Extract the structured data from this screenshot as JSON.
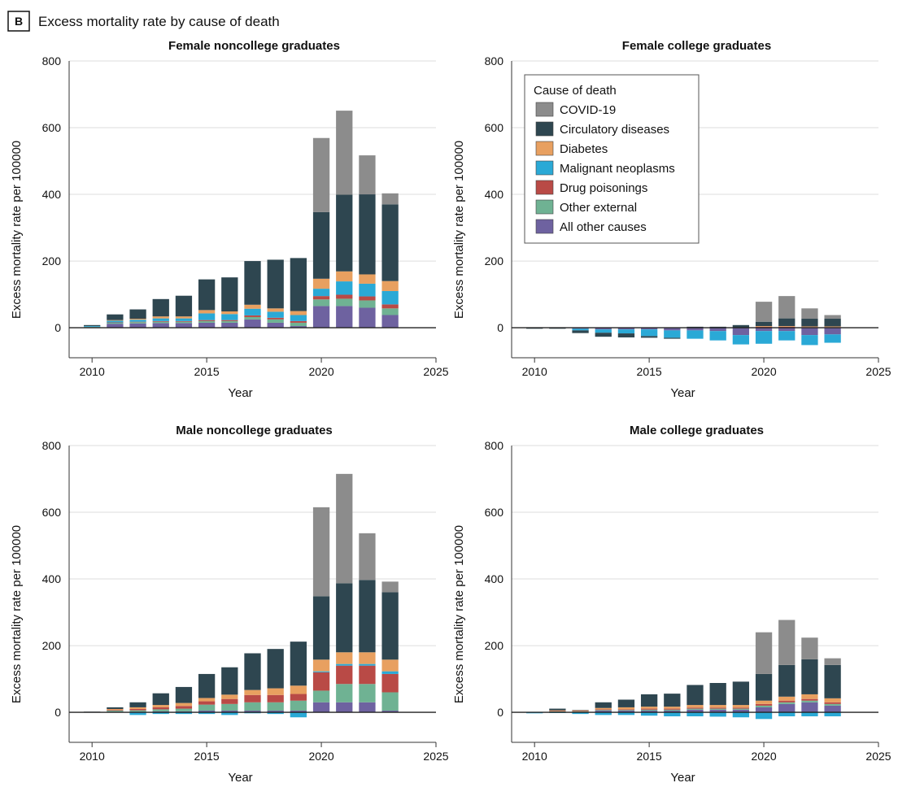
{
  "figure": {
    "label": "B",
    "title": "Excess mortality rate by cause of death"
  },
  "legend": {
    "title": "Cause of death",
    "items": [
      {
        "name": "COVID-19",
        "color": "#8c8c8c"
      },
      {
        "name": "Circulatory diseases",
        "color": "#2e4650"
      },
      {
        "name": "Diabetes",
        "color": "#e8a060"
      },
      {
        "name": "Malignant neoplasms",
        "color": "#2aa9d6"
      },
      {
        "name": "Drug poisonings",
        "color": "#b94a46"
      },
      {
        "name": "Other external",
        "color": "#6fb293"
      },
      {
        "name": "All other causes",
        "color": "#6e62a0"
      }
    ]
  },
  "chart_data": [
    {
      "type": "bar",
      "stacked": true,
      "title": "Female noncollege graduates",
      "xlabel": "Year",
      "ylabel": "Excess mortality rate per 100000",
      "xlim": [
        2009,
        2025
      ],
      "ylim": [
        -90,
        800
      ],
      "xticks": [
        2010,
        2015,
        2020,
        2025
      ],
      "yticks": [
        0,
        200,
        400,
        600,
        800
      ],
      "grid": true,
      "x": [
        2010,
        2011,
        2012,
        2013,
        2014,
        2015,
        2016,
        2017,
        2018,
        2019,
        2020,
        2021,
        2022,
        2023
      ],
      "series": [
        {
          "name": "All other causes",
          "values": [
            2,
            12,
            13,
            14,
            14,
            15,
            15,
            25,
            15,
            5,
            65,
            65,
            60,
            38
          ]
        },
        {
          "name": "Other external",
          "values": [
            1,
            3,
            4,
            4,
            4,
            5,
            5,
            7,
            10,
            10,
            20,
            22,
            22,
            20
          ]
        },
        {
          "name": "Drug poisonings",
          "values": [
            0,
            1,
            1,
            2,
            2,
            3,
            3,
            5,
            5,
            5,
            10,
            12,
            12,
            12
          ]
        },
        {
          "name": "Malignant neoplasms",
          "values": [
            2,
            5,
            6,
            8,
            8,
            20,
            18,
            20,
            18,
            18,
            22,
            40,
            38,
            40
          ]
        },
        {
          "name": "Diabetes",
          "values": [
            0,
            2,
            3,
            6,
            6,
            10,
            8,
            12,
            10,
            12,
            30,
            30,
            28,
            30
          ]
        },
        {
          "name": "Circulatory diseases",
          "values": [
            3,
            17,
            28,
            52,
            62,
            92,
            102,
            131,
            146,
            159,
            200,
            230,
            240,
            230
          ]
        },
        {
          "name": "COVID-19",
          "values": [
            0,
            0,
            0,
            0,
            0,
            0,
            0,
            0,
            0,
            0,
            222,
            252,
            117,
            33
          ]
        }
      ]
    },
    {
      "type": "bar",
      "stacked": true,
      "title": "Female college graduates",
      "xlabel": "Year",
      "ylabel": "Excess mortality rate per 100000",
      "xlim": [
        2009,
        2025
      ],
      "ylim": [
        -90,
        800
      ],
      "xticks": [
        2010,
        2015,
        2020,
        2025
      ],
      "yticks": [
        0,
        200,
        400,
        600,
        800
      ],
      "grid": true,
      "x": [
        2010,
        2011,
        2012,
        2013,
        2014,
        2015,
        2016,
        2017,
        2018,
        2019,
        2020,
        2021,
        2022,
        2023
      ],
      "series": [
        {
          "name": "All other causes",
          "values": [
            0,
            0,
            -3,
            -5,
            -5,
            -5,
            -8,
            -8,
            -10,
            -22,
            -10,
            -10,
            -22,
            -20
          ]
        },
        {
          "name": "Other external",
          "values": [
            0,
            0,
            0,
            0,
            0,
            0,
            0,
            0,
            0,
            0,
            0,
            0,
            0,
            0
          ]
        },
        {
          "name": "Drug poisonings",
          "values": [
            0,
            0,
            0,
            0,
            0,
            0,
            0,
            0,
            0,
            0,
            3,
            3,
            2,
            2
          ]
        },
        {
          "name": "Malignant neoplasms",
          "values": [
            -1,
            -1,
            -5,
            -10,
            -12,
            -20,
            -22,
            -25,
            -28,
            -28,
            -38,
            -28,
            -30,
            -25
          ]
        },
        {
          "name": "Diabetes",
          "values": [
            0,
            0,
            0,
            0,
            0,
            0,
            0,
            0,
            0,
            0,
            2,
            2,
            2,
            2
          ]
        },
        {
          "name": "Circulatory diseases",
          "values": [
            -2,
            -2,
            -8,
            -12,
            -12,
            -5,
            -3,
            3,
            3,
            8,
            13,
            23,
            23,
            23
          ]
        },
        {
          "name": "COVID-19",
          "values": [
            0,
            0,
            0,
            0,
            0,
            0,
            0,
            0,
            0,
            0,
            60,
            67,
            31,
            11
          ]
        }
      ]
    },
    {
      "type": "bar",
      "stacked": true,
      "title": "Male noncollege graduates",
      "xlabel": "Year",
      "ylabel": "Excess mortality rate per 100000",
      "xlim": [
        2009,
        2025
      ],
      "ylim": [
        -90,
        800
      ],
      "xticks": [
        2010,
        2015,
        2020,
        2025
      ],
      "yticks": [
        0,
        200,
        400,
        600,
        800
      ],
      "grid": true,
      "x": [
        2010,
        2011,
        2012,
        2013,
        2014,
        2015,
        2016,
        2017,
        2018,
        2019,
        2020,
        2021,
        2022,
        2023
      ],
      "series": [
        {
          "name": "All other causes",
          "values": [
            0,
            2,
            2,
            3,
            3,
            5,
            5,
            5,
            5,
            5,
            30,
            30,
            30,
            5
          ]
        },
        {
          "name": "Other external",
          "values": [
            1,
            3,
            4,
            6,
            8,
            18,
            20,
            25,
            25,
            30,
            35,
            55,
            55,
            55
          ]
        },
        {
          "name": "Drug poisonings",
          "values": [
            0,
            2,
            4,
            6,
            8,
            10,
            15,
            22,
            22,
            20,
            55,
            55,
            55,
            55
          ]
        },
        {
          "name": "Malignant neoplasms",
          "values": [
            0,
            0,
            -8,
            -5,
            -5,
            -5,
            -8,
            -3,
            -5,
            -15,
            3,
            5,
            5,
            8
          ]
        },
        {
          "name": "Diabetes",
          "values": [
            0,
            3,
            5,
            7,
            9,
            10,
            13,
            15,
            20,
            25,
            35,
            35,
            35,
            35
          ]
        },
        {
          "name": "Circulatory diseases",
          "values": [
            1,
            5,
            15,
            35,
            48,
            72,
            82,
            110,
            118,
            132,
            190,
            207,
            217,
            202
          ]
        },
        {
          "name": "COVID-19",
          "values": [
            0,
            0,
            0,
            0,
            0,
            0,
            0,
            0,
            0,
            0,
            267,
            328,
            140,
            32
          ]
        }
      ]
    },
    {
      "type": "bar",
      "stacked": true,
      "title": "Male college graduates",
      "xlabel": "Year",
      "ylabel": "Excess mortality rate per 100000",
      "xlim": [
        2009,
        2025
      ],
      "ylim": [
        -90,
        800
      ],
      "xticks": [
        2010,
        2015,
        2020,
        2025
      ],
      "yticks": [
        0,
        200,
        400,
        600,
        800
      ],
      "grid": true,
      "x": [
        2010,
        2011,
        2012,
        2013,
        2014,
        2015,
        2016,
        2017,
        2018,
        2019,
        2020,
        2021,
        2022,
        2023
      ],
      "series": [
        {
          "name": "All other causes",
          "values": [
            0,
            2,
            2,
            5,
            5,
            5,
            5,
            8,
            8,
            8,
            15,
            25,
            30,
            20
          ]
        },
        {
          "name": "Other external",
          "values": [
            0,
            1,
            1,
            2,
            2,
            3,
            3,
            3,
            3,
            3,
            5,
            5,
            5,
            5
          ]
        },
        {
          "name": "Drug poisonings",
          "values": [
            0,
            1,
            1,
            2,
            2,
            3,
            3,
            3,
            3,
            3,
            5,
            5,
            5,
            5
          ]
        },
        {
          "name": "Malignant neoplasms",
          "values": [
            -3,
            -2,
            -5,
            -8,
            -8,
            -10,
            -12,
            -12,
            -13,
            -15,
            -20,
            -12,
            -12,
            -12
          ]
        },
        {
          "name": "Diabetes",
          "values": [
            0,
            2,
            2,
            4,
            6,
            6,
            6,
            8,
            8,
            8,
            10,
            12,
            14,
            12
          ]
        },
        {
          "name": "Circulatory diseases",
          "values": [
            0,
            5,
            1,
            17,
            23,
            37,
            39,
            60,
            66,
            70,
            80,
            95,
            105,
            100
          ]
        },
        {
          "name": "COVID-19",
          "values": [
            0,
            0,
            0,
            0,
            0,
            0,
            0,
            0,
            0,
            0,
            125,
            135,
            65,
            20
          ]
        }
      ]
    }
  ]
}
